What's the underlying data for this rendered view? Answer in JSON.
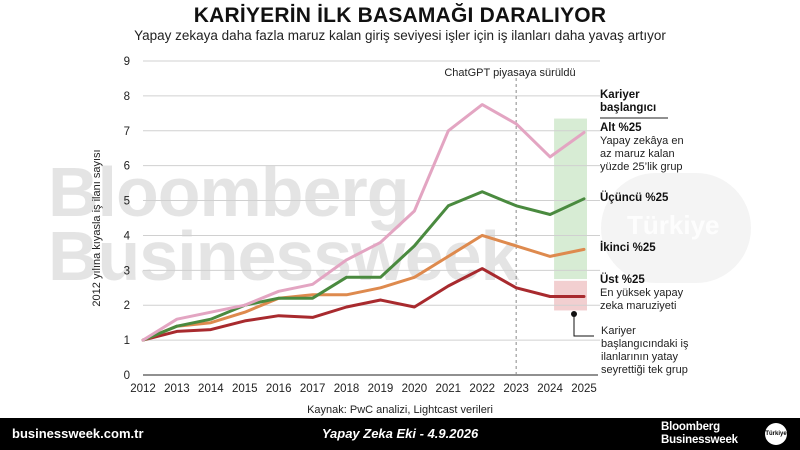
{
  "header": {
    "title": "KARİYERİN İLK BASAMAĞI DARALIYOR",
    "subtitle": "Yapay zekaya daha fazla maruz kalan giriş seviyesi işler için iş ilanları daha yavaş artıyor"
  },
  "watermark": {
    "line1": "Bloomberg",
    "line2": "Businessweek",
    "badge": "Türkiye"
  },
  "source": "Kaynak: PwC analizi, Lightcast verileri",
  "footer": {
    "site": "businessweek.com.tr",
    "issue": "Yapay Zeka Eki - 4.9.2026",
    "brand_line1": "Bloomberg",
    "brand_line2": "Businessweek",
    "badge": "Türkiye"
  },
  "chart_data": {
    "type": "line",
    "title": "KARİYERİN İLK BASAMAĞI DARALIYOR",
    "subtitle": "Yapay zekaya daha fazla maruz kalan giriş seviyesi işler için iş ilanları daha yavaş artıyor",
    "ylabel": "2012 yılına kıyasla iş ilanı sayısı",
    "xlabel": "",
    "ylim": [
      0,
      9
    ],
    "yticks": [
      "0",
      "1",
      "2",
      "3",
      "4",
      "5",
      "6",
      "7",
      "8",
      "9"
    ],
    "x": [
      "2012",
      "2013",
      "2014",
      "2015",
      "2016",
      "2017",
      "2018",
      "2019",
      "2020",
      "2021",
      "2022",
      "2023",
      "2024",
      "2025"
    ],
    "grid": "horizontal",
    "legend_heading": "Kariyer başlangıcı",
    "annotation": {
      "text": "ChatGPT piyasaya sürüldü",
      "x": "2023"
    },
    "series": [
      {
        "name": "Alt %25",
        "description": "Yapay zekâya en az maruz kalan yüzde 25'lik grup",
        "color": "#e3a5c2",
        "values": [
          1.0,
          1.6,
          1.8,
          2.0,
          2.4,
          2.6,
          3.3,
          3.8,
          4.7,
          7.0,
          7.75,
          7.2,
          6.25,
          6.95
        ]
      },
      {
        "name": "Üçüncü %25",
        "description": "",
        "color": "#4a8a3f",
        "values": [
          1.0,
          1.4,
          1.6,
          2.0,
          2.2,
          2.2,
          2.8,
          2.8,
          3.7,
          4.85,
          5.25,
          4.85,
          4.6,
          5.05
        ]
      },
      {
        "name": "İkinci %25",
        "description": "",
        "color": "#de8a4e",
        "values": [
          1.0,
          1.4,
          1.5,
          1.8,
          2.2,
          2.3,
          2.3,
          2.5,
          2.8,
          3.4,
          4.0,
          3.7,
          3.4,
          3.6
        ]
      },
      {
        "name": "Üst %25",
        "description": "En yüksek yapay zeka maruziyeti",
        "color": "#a82a2e",
        "values": [
          1.0,
          1.25,
          1.3,
          1.55,
          1.7,
          1.65,
          1.95,
          2.15,
          1.95,
          2.55,
          3.05,
          2.5,
          2.25,
          2.25
        ]
      }
    ],
    "highlight_bands": [
      {
        "series": "Üçüncü %25",
        "x_from": "2024",
        "x_to": "2025",
        "y_from": 2.75,
        "y_to": 7.35,
        "color": "#d7ecd4"
      },
      {
        "series": "Üst %25",
        "x_from": "2024",
        "x_to": "2025",
        "y_from": 1.85,
        "y_to": 2.7,
        "color": "#f2cfd0"
      }
    ],
    "callout": {
      "text": "Kariyer başlangıcındaki iş ilanlarının yatay seyrettiği tek grup",
      "marker_x": "2025",
      "marker_y": 1.75
    }
  }
}
